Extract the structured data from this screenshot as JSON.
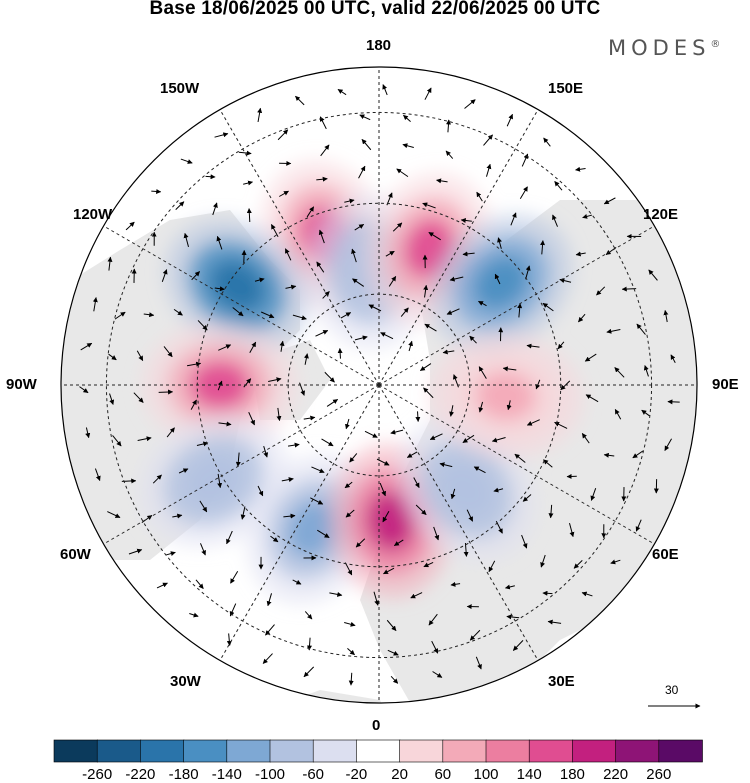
{
  "title": "Base 18/06/2025 00 UTC, valid 22/06/2025 00 UTC",
  "brand": "MODES",
  "brand_mark": "®",
  "longitude_labels": {
    "top": "180",
    "top_left": "150W",
    "top_right": "150E",
    "upper_left": "120W",
    "upper_right": "120E",
    "left": "90W",
    "right": "90E",
    "lower_left": "60W",
    "lower_right": "60E",
    "bottom_left": "30W",
    "bottom_right": "30E",
    "bottom": "0"
  },
  "vector_scale_label": "30",
  "colorbar": {
    "ticks": [
      "-260",
      "-220",
      "-180",
      "-140",
      "-100",
      "-60",
      "-20",
      "20",
      "60",
      "100",
      "140",
      "180",
      "220",
      "260"
    ],
    "colors": [
      "#0b3a5c",
      "#1a5a8a",
      "#2a74aa",
      "#4a8fc2",
      "#7ea8d4",
      "#b2c2e0",
      "#dcdff0",
      "#ffffff",
      "#f8d6da",
      "#f3aab8",
      "#ec7ea0",
      "#e04d91",
      "#c3207f",
      "#8e1476",
      "#5a0a66"
    ]
  },
  "anomaly_centers": [
    {
      "kind": "positive",
      "level": 140,
      "lon": -160,
      "lat": 55
    },
    {
      "kind": "negative",
      "level": -100,
      "lon": -175,
      "lat": 65
    },
    {
      "kind": "positive",
      "level": 140,
      "lon": 160,
      "lat": 58
    },
    {
      "kind": "negative",
      "level": -180,
      "lon": 130,
      "lat": 55
    },
    {
      "kind": "negative",
      "level": -220,
      "lon": -125,
      "lat": 52
    },
    {
      "kind": "positive",
      "level": 140,
      "lon": -90,
      "lat": 55
    },
    {
      "kind": "negative",
      "level": -100,
      "lon": -60,
      "lat": 48
    },
    {
      "kind": "negative",
      "level": -140,
      "lon": -25,
      "lat": 55
    },
    {
      "kind": "positive",
      "level": 180,
      "lon": 5,
      "lat": 60
    },
    {
      "kind": "negative",
      "level": -100,
      "lon": 40,
      "lat": 60
    },
    {
      "kind": "positive",
      "level": 60,
      "lon": 85,
      "lat": 62
    }
  ]
}
